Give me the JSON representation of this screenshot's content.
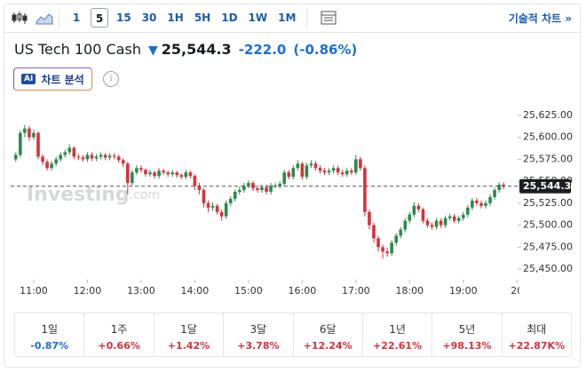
{
  "toolbar": {
    "intervals": [
      "1",
      "5",
      "15",
      "30",
      "1H",
      "5H",
      "1D",
      "1W",
      "1M"
    ],
    "selected": "5",
    "link": "기술적 차트 »"
  },
  "header": {
    "name": "US Tech 100 Cash",
    "price": "25,544.3",
    "change": "-222.0",
    "change_pct": "(-0.86%)",
    "ai_badge": "AI",
    "ai_button": "차트 분석",
    "info": "i"
  },
  "chart_data": {
    "type": "candlestick",
    "categories": [
      null,
      null,
      null,
      null,
      "11:00",
      null,
      null,
      null,
      null,
      null,
      null,
      null,
      null,
      null,
      null,
      null,
      "12:00",
      null,
      null,
      null,
      null,
      null,
      null,
      null,
      null,
      null,
      null,
      null,
      "13:00",
      null,
      null,
      null,
      null,
      null,
      null,
      null,
      null,
      null,
      null,
      null,
      "14:00",
      null,
      null,
      null,
      null,
      null,
      null,
      null,
      null,
      null,
      null,
      null,
      "15:00",
      null,
      null,
      null,
      null,
      null,
      null,
      null,
      null,
      null,
      null,
      null,
      "16:00",
      null,
      null,
      null,
      null,
      null,
      null,
      null,
      null,
      null,
      null,
      null,
      "17:00",
      null,
      null,
      null,
      null,
      null,
      null,
      null,
      null,
      null,
      null,
      null,
      "18:00",
      null,
      null,
      null,
      null,
      null,
      null,
      null,
      null,
      null,
      null,
      null,
      "19:00",
      null,
      null,
      null,
      null,
      null,
      null,
      null,
      null,
      null,
      null,
      null,
      "20"
    ],
    "open": [
      25575,
      25580,
      25605,
      25610,
      25600,
      25605,
      25578,
      25572,
      25565,
      25570,
      25575,
      25580,
      25583,
      25588,
      25578,
      25577,
      25575,
      25580,
      25576,
      25578,
      25580,
      25577,
      25579,
      25578,
      25574,
      25570,
      25548,
      25560,
      25565,
      25563,
      25558,
      25560,
      25556,
      25562,
      25560,
      25558,
      25560,
      25557,
      25555,
      25560,
      25556,
      25545,
      25540,
      25525,
      25520,
      25522,
      25515,
      25510,
      25525,
      25530,
      25538,
      25540,
      25545,
      25548,
      25542,
      25540,
      25543,
      25538,
      25545,
      25545,
      25547,
      25560,
      25555,
      25565,
      25570,
      25555,
      25568,
      25570,
      25565,
      25562,
      25560,
      25562,
      25565,
      25560,
      25558,
      25562,
      25560,
      25575,
      25565,
      25515,
      25500,
      25485,
      25475,
      25470,
      25468,
      25480,
      25488,
      25495,
      25505,
      25512,
      25522,
      25518,
      25505,
      25500,
      25498,
      25505,
      25500,
      25508,
      25510,
      25505,
      25508,
      25512,
      25520,
      25528,
      25525,
      25522,
      25525,
      25532,
      25540,
      25546,
      null,
      null,
      null
    ],
    "high": [
      25583,
      25608,
      25614,
      25613,
      25609,
      25607,
      25581,
      25575,
      25573,
      25578,
      25583,
      25586,
      25592,
      25590,
      25581,
      25580,
      25583,
      25583,
      25581,
      25583,
      25582,
      25582,
      25582,
      25580,
      25576,
      25572,
      25563,
      25568,
      25568,
      25565,
      25563,
      25562,
      25565,
      25564,
      25562,
      25563,
      25562,
      25559,
      25563,
      25562,
      25558,
      25548,
      25542,
      25528,
      25526,
      25524,
      25518,
      25528,
      25533,
      25541,
      25544,
      25548,
      25551,
      25550,
      25545,
      25546,
      25546,
      25548,
      25548,
      25550,
      25563,
      25563,
      25568,
      25574,
      25572,
      25571,
      25574,
      25573,
      25568,
      25565,
      25565,
      25568,
      25568,
      25563,
      25565,
      25565,
      25580,
      25578,
      25568,
      25518,
      25503,
      25488,
      25478,
      25474,
      25483,
      25491,
      25498,
      25508,
      25515,
      25526,
      25525,
      25520,
      25508,
      25503,
      25508,
      25508,
      25511,
      25513,
      25513,
      25511,
      25515,
      25523,
      25531,
      25531,
      25528,
      25528,
      25535,
      25543,
      25549,
      25549,
      null,
      null,
      null
    ],
    "low": [
      25572,
      25577,
      25600,
      25596,
      25597,
      25575,
      25568,
      25562,
      25562,
      25567,
      25572,
      25577,
      25580,
      25575,
      25574,
      25572,
      25572,
      25573,
      25573,
      25575,
      25574,
      25574,
      25575,
      25571,
      25566,
      25535,
      25545,
      25557,
      25560,
      25555,
      25555,
      25553,
      25553,
      25557,
      25555,
      25555,
      25554,
      25552,
      25552,
      25553,
      25540,
      25535,
      25520,
      25515,
      25516,
      25512,
      25505,
      25507,
      25522,
      25527,
      25535,
      25537,
      25542,
      25539,
      25537,
      25537,
      25535,
      25535,
      25542,
      25542,
      25544,
      25552,
      25552,
      25562,
      25552,
      25552,
      25565,
      25562,
      25559,
      25557,
      25557,
      25559,
      25557,
      25555,
      25555,
      25557,
      25557,
      25562,
      25510,
      25495,
      25480,
      25470,
      25462,
      25464,
      25465,
      25477,
      25485,
      25492,
      25502,
      25509,
      25515,
      25502,
      25497,
      25495,
      25495,
      25497,
      25497,
      25505,
      25502,
      25502,
      25505,
      25509,
      25517,
      25522,
      25519,
      25519,
      25522,
      25529,
      25537,
      25541,
      null,
      null,
      null
    ],
    "close": [
      25580,
      25605,
      25610,
      25600,
      25605,
      25578,
      25572,
      25565,
      25570,
      25575,
      25580,
      25583,
      25588,
      25578,
      25577,
      25575,
      25580,
      25576,
      25578,
      25580,
      25577,
      25579,
      25578,
      25574,
      25570,
      25548,
      25560,
      25565,
      25563,
      25558,
      25560,
      25556,
      25562,
      25560,
      25558,
      25560,
      25557,
      25555,
      25560,
      25556,
      25545,
      25540,
      25525,
      25520,
      25522,
      25515,
      25510,
      25525,
      25530,
      25538,
      25540,
      25545,
      25548,
      25542,
      25540,
      25543,
      25538,
      25545,
      25545,
      25547,
      25560,
      25555,
      25565,
      25570,
      25555,
      25568,
      25570,
      25565,
      25562,
      25560,
      25562,
      25565,
      25560,
      25558,
      25562,
      25560,
      25575,
      25565,
      25515,
      25500,
      25485,
      25475,
      25470,
      25468,
      25480,
      25488,
      25495,
      25505,
      25512,
      25522,
      25518,
      25505,
      25500,
      25498,
      25505,
      25500,
      25508,
      25510,
      25505,
      25508,
      25512,
      25520,
      25528,
      25525,
      25522,
      25525,
      25532,
      25540,
      25546,
      25544.3,
      null,
      null,
      null
    ],
    "up_color": "#2b8a4b",
    "down_color": "#d8313b",
    "ylim": [
      25440,
      25635
    ],
    "yticks": [
      {
        "value": 25450,
        "label": "25,450.00"
      },
      {
        "value": 25475,
        "label": "25,475.00"
      },
      {
        "value": 25500,
        "label": "25,500.00"
      },
      {
        "value": 25525,
        "label": "25,525.00"
      },
      {
        "value": 25550,
        "label": "25,550.00"
      },
      {
        "value": 25575,
        "label": "25,575.00"
      },
      {
        "value": 25600,
        "label": "25,600.00"
      },
      {
        "value": 25625,
        "label": "25,625.00"
      }
    ],
    "last_price": {
      "value": 25544.3,
      "label": "25,544.30"
    },
    "watermark": [
      "Investing",
      ".com"
    ]
  },
  "periods": [
    {
      "label": "1일",
      "value": "-0.87%",
      "color": "#1a6fd6"
    },
    {
      "label": "1주",
      "value": "+0.66%",
      "color": "#d8313b"
    },
    {
      "label": "1달",
      "value": "+1.42%",
      "color": "#d8313b"
    },
    {
      "label": "3달",
      "value": "+3.78%",
      "color": "#d8313b"
    },
    {
      "label": "6달",
      "value": "+12.24%",
      "color": "#d8313b"
    },
    {
      "label": "1년",
      "value": "+22.61%",
      "color": "#d8313b"
    },
    {
      "label": "5년",
      "value": "+98.13%",
      "color": "#d8313b"
    },
    {
      "label": "최대",
      "value": "+22.87K%",
      "color": "#d8313b"
    }
  ]
}
